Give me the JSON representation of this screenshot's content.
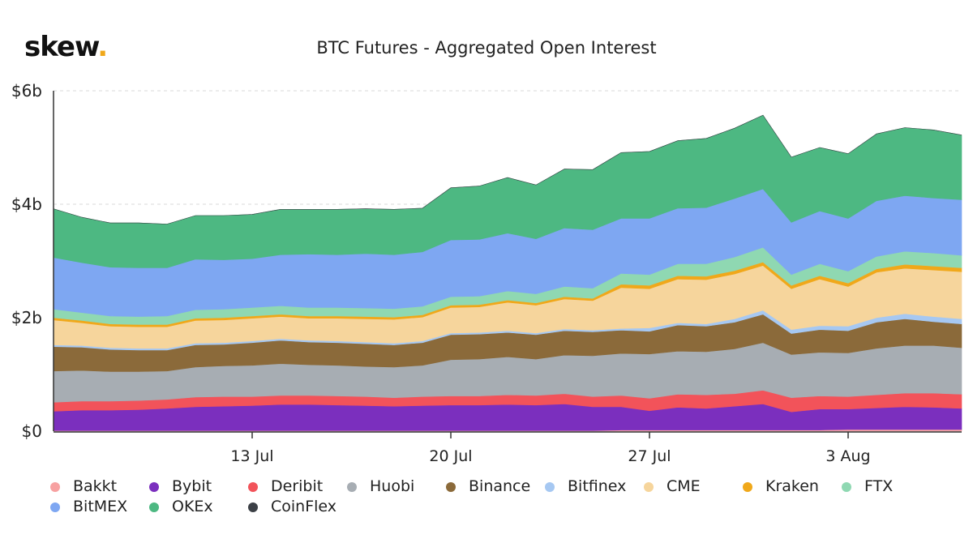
{
  "brand": {
    "name": "skew",
    "dot": "."
  },
  "chart_data": {
    "type": "area",
    "stacked": true,
    "title": "BTC Futures - Aggregated Open Interest",
    "x_ticks": [
      "13 Jul",
      "20 Jul",
      "27 Jul",
      "3 Aug"
    ],
    "y_ticks": [
      "$0",
      "$2b",
      "$4b",
      "$6b"
    ],
    "ylim": [
      0,
      6
    ],
    "y_unit": "$b",
    "x": [
      "2020-07-06",
      "2020-07-07",
      "2020-07-08",
      "2020-07-09",
      "2020-07-10",
      "2020-07-11",
      "2020-07-12",
      "2020-07-13",
      "2020-07-14",
      "2020-07-15",
      "2020-07-16",
      "2020-07-17",
      "2020-07-18",
      "2020-07-19",
      "2020-07-20",
      "2020-07-21",
      "2020-07-22",
      "2020-07-23",
      "2020-07-24",
      "2020-07-25",
      "2020-07-26",
      "2020-07-27",
      "2020-07-28",
      "2020-07-29",
      "2020-07-30",
      "2020-07-31",
      "2020-08-01",
      "2020-08-02",
      "2020-08-03",
      "2020-08-04",
      "2020-08-05",
      "2020-08-06",
      "2020-08-07"
    ],
    "x_range": [
      "2020-07-06",
      "2020-08-07"
    ],
    "grid": {
      "horizontal": true
    },
    "legend_position": "bottom",
    "series": [
      {
        "name": "Bakkt",
        "color": "#f7a1a1",
        "values": [
          0.01,
          0.01,
          0.01,
          0.01,
          0.01,
          0.01,
          0.01,
          0.01,
          0.01,
          0.01,
          0.01,
          0.01,
          0.01,
          0.01,
          0.01,
          0.01,
          0.01,
          0.01,
          0.01,
          0.01,
          0.02,
          0.02,
          0.02,
          0.02,
          0.02,
          0.02,
          0.02,
          0.02,
          0.03,
          0.03,
          0.03,
          0.03,
          0.03
        ]
      },
      {
        "name": "Bybit",
        "color": "#7b2fbe",
        "values": [
          0.34,
          0.36,
          0.36,
          0.37,
          0.39,
          0.42,
          0.43,
          0.44,
          0.46,
          0.46,
          0.45,
          0.44,
          0.43,
          0.44,
          0.45,
          0.45,
          0.46,
          0.45,
          0.47,
          0.42,
          0.41,
          0.34,
          0.4,
          0.38,
          0.42,
          0.46,
          0.32,
          0.37,
          0.36,
          0.38,
          0.4,
          0.39,
          0.37
        ]
      },
      {
        "name": "Deribit",
        "color": "#f2535a",
        "values": [
          0.16,
          0.16,
          0.16,
          0.16,
          0.16,
          0.17,
          0.17,
          0.16,
          0.16,
          0.16,
          0.16,
          0.16,
          0.15,
          0.16,
          0.16,
          0.16,
          0.17,
          0.17,
          0.18,
          0.18,
          0.2,
          0.22,
          0.23,
          0.24,
          0.22,
          0.24,
          0.25,
          0.23,
          0.22,
          0.23,
          0.24,
          0.25,
          0.25
        ]
      },
      {
        "name": "Huobi",
        "color": "#a7adb3",
        "values": [
          0.55,
          0.54,
          0.52,
          0.51,
          0.5,
          0.53,
          0.54,
          0.55,
          0.56,
          0.54,
          0.54,
          0.53,
          0.54,
          0.55,
          0.64,
          0.65,
          0.67,
          0.64,
          0.68,
          0.72,
          0.74,
          0.78,
          0.76,
          0.76,
          0.79,
          0.84,
          0.76,
          0.77,
          0.77,
          0.82,
          0.84,
          0.84,
          0.82
        ]
      },
      {
        "name": "Binance",
        "color": "#8b6a3a",
        "values": [
          0.43,
          0.41,
          0.39,
          0.38,
          0.37,
          0.39,
          0.38,
          0.4,
          0.41,
          0.4,
          0.4,
          0.4,
          0.39,
          0.4,
          0.44,
          0.44,
          0.43,
          0.43,
          0.43,
          0.42,
          0.41,
          0.4,
          0.46,
          0.45,
          0.47,
          0.5,
          0.37,
          0.4,
          0.39,
          0.46,
          0.47,
          0.42,
          0.42
        ]
      },
      {
        "name": "Bitfinex",
        "color": "#a6c8f2",
        "values": [
          0.03,
          0.03,
          0.03,
          0.03,
          0.03,
          0.03,
          0.03,
          0.03,
          0.03,
          0.03,
          0.03,
          0.03,
          0.03,
          0.03,
          0.03,
          0.03,
          0.03,
          0.03,
          0.03,
          0.03,
          0.03,
          0.06,
          0.04,
          0.04,
          0.06,
          0.07,
          0.07,
          0.07,
          0.08,
          0.08,
          0.09,
          0.09,
          0.09
        ]
      },
      {
        "name": "CME",
        "color": "#f6d59c",
        "values": [
          0.44,
          0.4,
          0.38,
          0.38,
          0.38,
          0.4,
          0.4,
          0.4,
          0.39,
          0.39,
          0.4,
          0.41,
          0.42,
          0.42,
          0.45,
          0.45,
          0.5,
          0.49,
          0.53,
          0.52,
          0.72,
          0.69,
          0.77,
          0.78,
          0.79,
          0.79,
          0.72,
          0.82,
          0.7,
          0.8,
          0.8,
          0.82,
          0.83
        ]
      },
      {
        "name": "Kraken",
        "color": "#f0a81a",
        "values": [
          0.04,
          0.04,
          0.04,
          0.04,
          0.04,
          0.04,
          0.04,
          0.04,
          0.04,
          0.04,
          0.04,
          0.04,
          0.04,
          0.04,
          0.04,
          0.04,
          0.04,
          0.04,
          0.04,
          0.04,
          0.06,
          0.06,
          0.06,
          0.06,
          0.06,
          0.06,
          0.06,
          0.06,
          0.06,
          0.06,
          0.07,
          0.07,
          0.07
        ]
      },
      {
        "name": "FTX",
        "color": "#8fd8b2",
        "values": [
          0.15,
          0.14,
          0.14,
          0.14,
          0.15,
          0.15,
          0.15,
          0.15,
          0.15,
          0.15,
          0.15,
          0.15,
          0.15,
          0.15,
          0.15,
          0.15,
          0.16,
          0.16,
          0.18,
          0.18,
          0.19,
          0.19,
          0.21,
          0.22,
          0.24,
          0.26,
          0.19,
          0.21,
          0.21,
          0.22,
          0.23,
          0.23,
          0.22
        ]
      },
      {
        "name": "BitMEX",
        "color": "#7ea7f2",
        "values": [
          0.91,
          0.88,
          0.86,
          0.86,
          0.85,
          0.89,
          0.87,
          0.86,
          0.9,
          0.94,
          0.93,
          0.96,
          0.95,
          0.96,
          1.0,
          1.0,
          1.02,
          0.97,
          1.03,
          1.03,
          0.97,
          0.99,
          0.98,
          0.99,
          1.03,
          1.03,
          0.92,
          0.93,
          0.93,
          0.98,
          0.98,
          0.97,
          0.98
        ]
      },
      {
        "name": "OKEx",
        "color": "#4db882",
        "values": [
          0.86,
          0.8,
          0.78,
          0.79,
          0.77,
          0.77,
          0.78,
          0.78,
          0.8,
          0.79,
          0.8,
          0.79,
          0.8,
          0.77,
          0.92,
          0.94,
          0.98,
          0.95,
          1.04,
          1.06,
          1.16,
          1.18,
          1.19,
          1.22,
          1.24,
          1.3,
          1.15,
          1.12,
          1.14,
          1.18,
          1.2,
          1.2,
          1.14
        ]
      },
      {
        "name": "CoinFlex",
        "color": "#3c4046",
        "values": [
          0,
          0,
          0,
          0,
          0,
          0,
          0,
          0,
          0,
          0,
          0,
          0,
          0,
          0,
          0,
          0,
          0,
          0,
          0,
          0,
          0,
          0,
          0,
          0,
          0,
          0,
          0,
          0,
          0,
          0,
          0,
          0,
          0
        ]
      }
    ]
  }
}
